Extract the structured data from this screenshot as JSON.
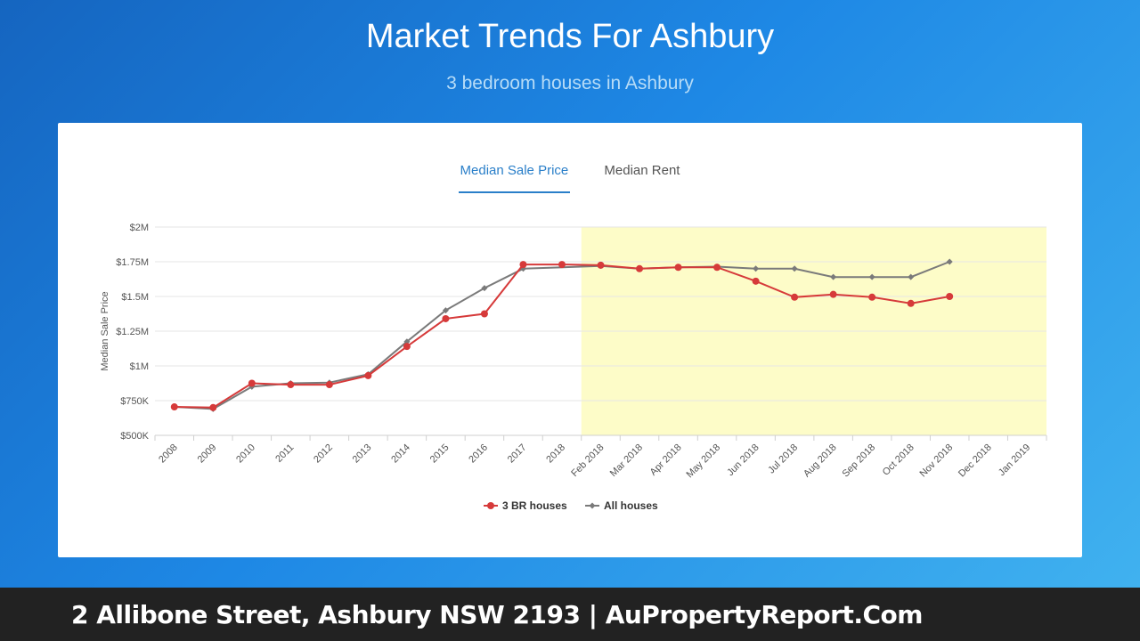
{
  "header": {
    "title": "Market Trends For Ashbury",
    "subtitle": "3 bedroom houses in Ashbury"
  },
  "tabs": [
    {
      "label": "Median Sale Price",
      "active": true
    },
    {
      "label": "Median Rent",
      "active": false
    }
  ],
  "colors": {
    "series_3br": "#d63a3a",
    "series_all": "#7a7a7a",
    "active_tab": "#2a7fc9",
    "highlight_band": "#fdfcc8"
  },
  "chart_data": {
    "type": "line",
    "ylabel": "Median Sale Price",
    "y_ticks": [
      "$500K",
      "$750K",
      "$1M",
      "$1.25M",
      "$1.5M",
      "$1.75M",
      "$2M"
    ],
    "ylim": [
      500000,
      2000000
    ],
    "categories": [
      "2008",
      "2009",
      "2010",
      "2011",
      "2012",
      "2013",
      "2014",
      "2015",
      "2016",
      "2017",
      "2018",
      "Feb 2018",
      "Mar 2018",
      "Apr 2018",
      "May 2018",
      "Jun 2018",
      "Jul 2018",
      "Aug 2018",
      "Sep 2018",
      "Oct 2018",
      "Nov 2018",
      "Dec 2018",
      "Jan 2019"
    ],
    "highlight_range": [
      "Feb 2018",
      "Jan 2019"
    ],
    "grid": true,
    "legend_position": "bottom",
    "series": [
      {
        "name": "3 BR houses",
        "values": [
          705000,
          700000,
          875000,
          865000,
          865000,
          930000,
          1140000,
          1340000,
          1375000,
          1730000,
          1730000,
          1725000,
          1700000,
          1710000,
          1710000,
          1610000,
          1495000,
          1515000,
          1495000,
          1450000,
          1500000,
          null,
          null
        ]
      },
      {
        "name": "All houses",
        "values": [
          705000,
          690000,
          850000,
          875000,
          880000,
          940000,
          1175000,
          1400000,
          1560000,
          1700000,
          null,
          1720000,
          1700000,
          1710000,
          1715000,
          1700000,
          1700000,
          1640000,
          1640000,
          1640000,
          1750000,
          null,
          null
        ]
      }
    ]
  },
  "footer": {
    "text": "2 Allibone Street, Ashbury NSW 2193 | AuPropertyReport.Com"
  }
}
